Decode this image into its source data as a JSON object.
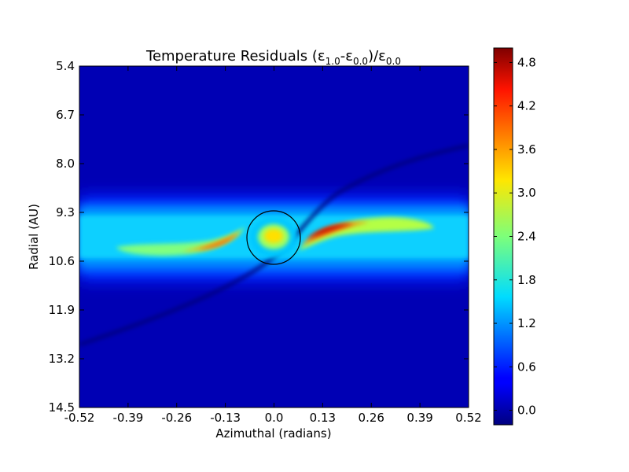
{
  "chart_data": {
    "type": "heatmap",
    "title": {
      "prefix": "Temperature Residuals (ε",
      "sub1": "1.0",
      "mid1": "-ε",
      "sub2": "0.0",
      "mid2": ")/ε",
      "sub3": "0.0"
    },
    "xlabel": "Azimuthal (radians)",
    "ylabel": "Radial (AU)",
    "xlim": [
      -0.52,
      0.52
    ],
    "ylim": [
      5.4,
      14.5
    ],
    "y_inverted": true,
    "x_ticks": [
      "-0.52",
      "-0.39",
      "-0.26",
      "-0.13",
      "0.0",
      "0.13",
      "0.26",
      "0.39",
      "0.52"
    ],
    "y_ticks": [
      "5.4",
      "6.7",
      "8.0",
      "9.3",
      "10.6",
      "11.9",
      "13.2",
      "14.5"
    ],
    "colorbar": {
      "colormap": "jet",
      "range": [
        -0.2,
        5.0
      ],
      "ticks": [
        "0.0",
        "0.6",
        "1.2",
        "1.8",
        "2.4",
        "3.0",
        "3.6",
        "4.2",
        "4.8"
      ]
    },
    "background_value": 0.0,
    "ring_band": {
      "r_min": 9.2,
      "r_max": 10.9,
      "value": 1.2
    },
    "features": [
      {
        "name": "planet-core",
        "azimuth": 0.0,
        "radius": 9.95,
        "value": 3.0
      },
      {
        "name": "leading-arm-peak",
        "azimuth": 0.18,
        "radius": 9.75,
        "value": 4.8
      },
      {
        "name": "trailing-arm-peak",
        "azimuth": -0.15,
        "radius": 10.3,
        "value": 3.8
      },
      {
        "name": "spiral-wake",
        "azimuth_range": [
          -0.52,
          0.52
        ],
        "radius_range": [
          12.9,
          7.9
        ],
        "value": -0.1
      }
    ],
    "planet_marker": {
      "azimuth": 0.0,
      "radius": 9.95,
      "hill_radius_azimuth": 0.07
    }
  }
}
